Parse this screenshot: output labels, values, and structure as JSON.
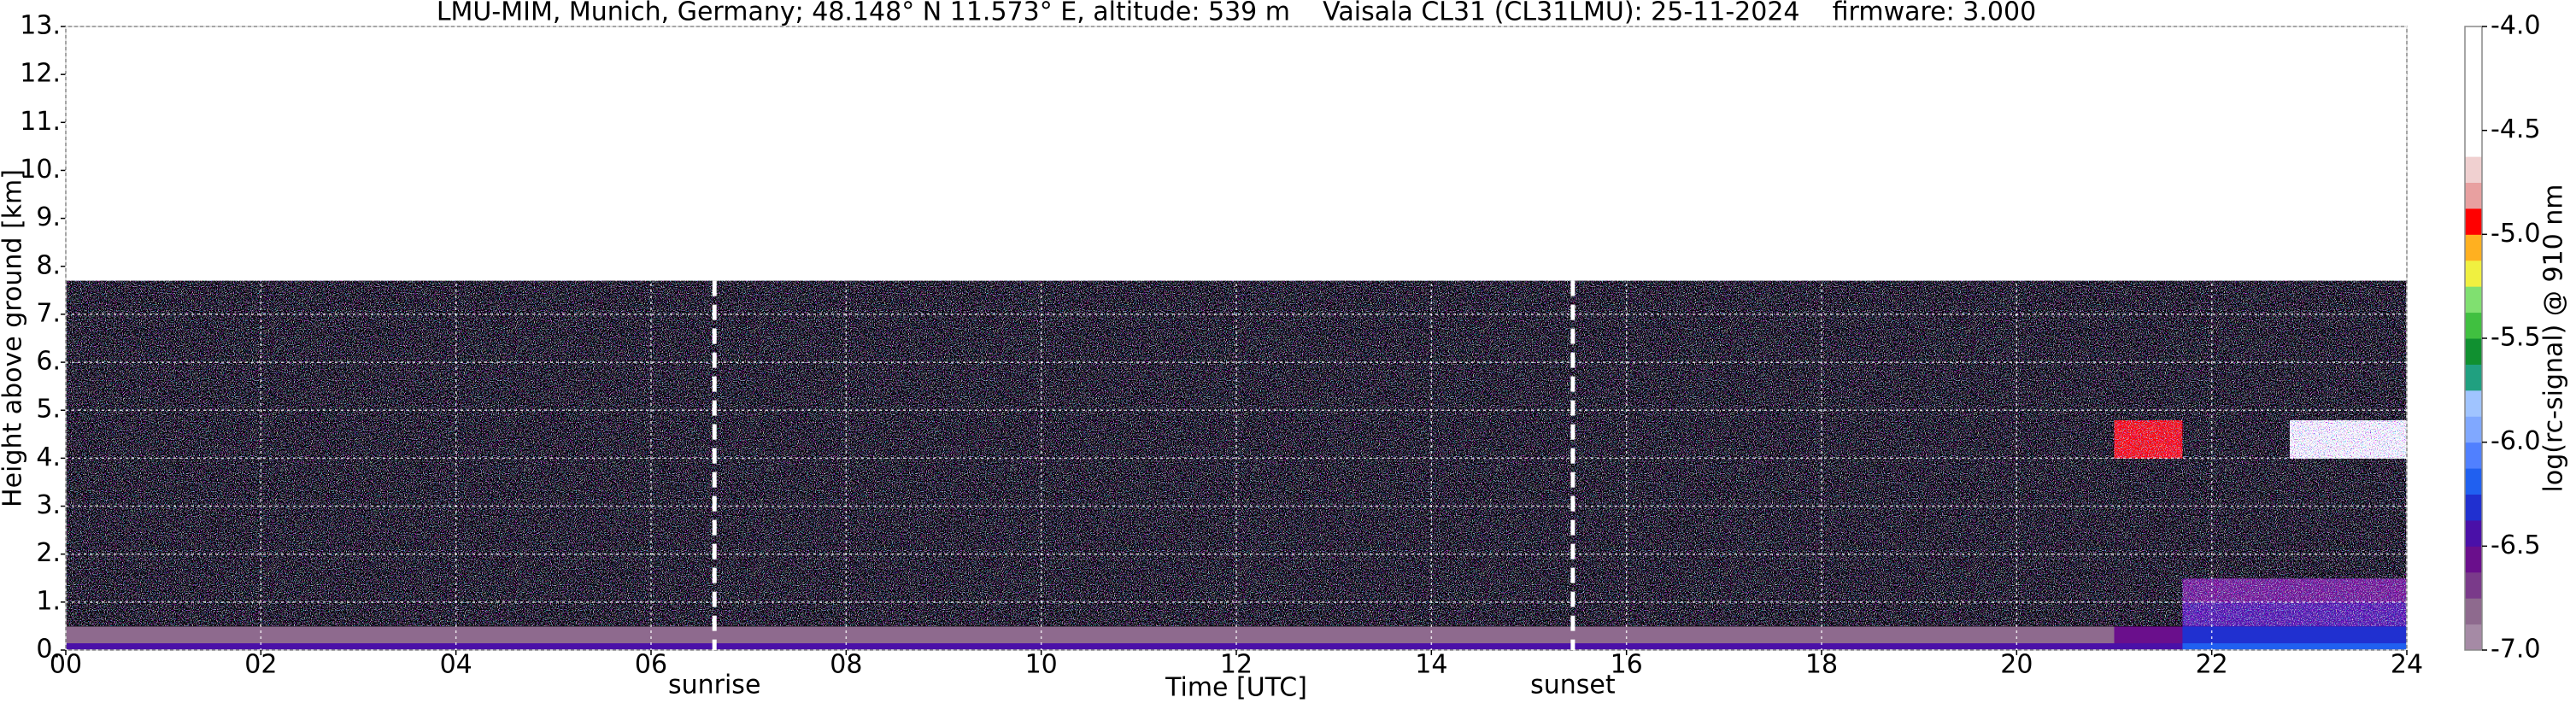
{
  "chart_data": {
    "type": "heatmap",
    "title": "LMU-MIM, Munich, Germany; 48.148° N 11.573° E, altitude: 539 m    Vaisala CL31 (CL31LMU): 25-11-2024    firmware: 3.000",
    "x_label": "Time [UTC]",
    "y_label": "Height above ground [km]",
    "colorbar_label": "log(rc-signal) @ 910 nm",
    "xlim": [
      0,
      24
    ],
    "xticks": [
      {
        "value": 0,
        "label": "00"
      },
      {
        "value": 2,
        "label": "02"
      },
      {
        "value": 4,
        "label": "04"
      },
      {
        "value": 6,
        "label": "06"
      },
      {
        "value": 8,
        "label": "08"
      },
      10,
      12,
      14,
      16,
      18,
      20,
      22,
      24
    ],
    "ylim": [
      0,
      13
    ],
    "yticks": [
      {
        "value": 0,
        "label": "0."
      },
      {
        "value": 1,
        "label": "1."
      },
      {
        "value": 2,
        "label": "2."
      },
      {
        "value": 3,
        "label": "3."
      },
      {
        "value": 4,
        "label": "4."
      },
      {
        "value": 5,
        "label": "5."
      },
      {
        "value": 6,
        "label": "6."
      },
      {
        "value": 7,
        "label": "7."
      },
      {
        "value": 8,
        "label": "8."
      },
      {
        "value": 9,
        "label": "9."
      },
      {
        "value": 10,
        "label": "10."
      },
      {
        "value": 11,
        "label": "11."
      },
      {
        "value": 12,
        "label": "12."
      },
      {
        "value": 13,
        "label": "13."
      }
    ],
    "grid": true,
    "clim": [
      -7,
      -4
    ],
    "cticks": [
      {
        "value": -4,
        "label": "-4.0"
      },
      -4.5,
      {
        "value": -5,
        "label": "-5.0"
      },
      -5.5,
      {
        "value": -6,
        "label": "-6.0"
      },
      -6.5,
      {
        "value": -7,
        "label": "-7.0"
      }
    ],
    "colorscale": [
      "#a58aa5",
      "#8e6a8e",
      "#7a3a8a",
      "#6a0f8c",
      "#4a10a8",
      "#2030d0",
      "#2060f0",
      "#5080ff",
      "#80a8ff",
      "#a0c4ff",
      "#20a080",
      "#109030",
      "#40c040",
      "#80e070",
      "#f0f040",
      "#ffb020",
      "#ff0000",
      "#e8a0a0",
      "#f0d0d0",
      "#ffffff",
      "#ffffff",
      "#ffffff",
      "#ffffff",
      "#ffffff"
    ],
    "under_color": "#000000",
    "x_edges": [
      0,
      21,
      21.7,
      22.8,
      24
    ],
    "y_edges": [
      0,
      0.15,
      0.5,
      1.0,
      1.5,
      4.0,
      4.8,
      7.7
    ],
    "z": [
      [
        -6.4,
        -6.4,
        -6.2,
        -6.2
      ],
      [
        -6.8,
        -6.6,
        -6.3,
        -6.3
      ],
      [
        -7.2,
        -7.2,
        -6.4,
        -6.4
      ],
      [
        -7.3,
        -7.3,
        -6.6,
        -6.6
      ],
      [
        -7.3,
        -7.3,
        -7.3,
        -7.3
      ],
      [
        -7.3,
        -4.9,
        -7.3,
        -4.6
      ],
      [
        -7.3,
        -7.3,
        -7.3,
        -7.3
      ]
    ],
    "annotations": [
      {
        "text": "sunrise",
        "x": 6.65
      },
      {
        "text": "sunset",
        "x": 15.45
      }
    ]
  }
}
